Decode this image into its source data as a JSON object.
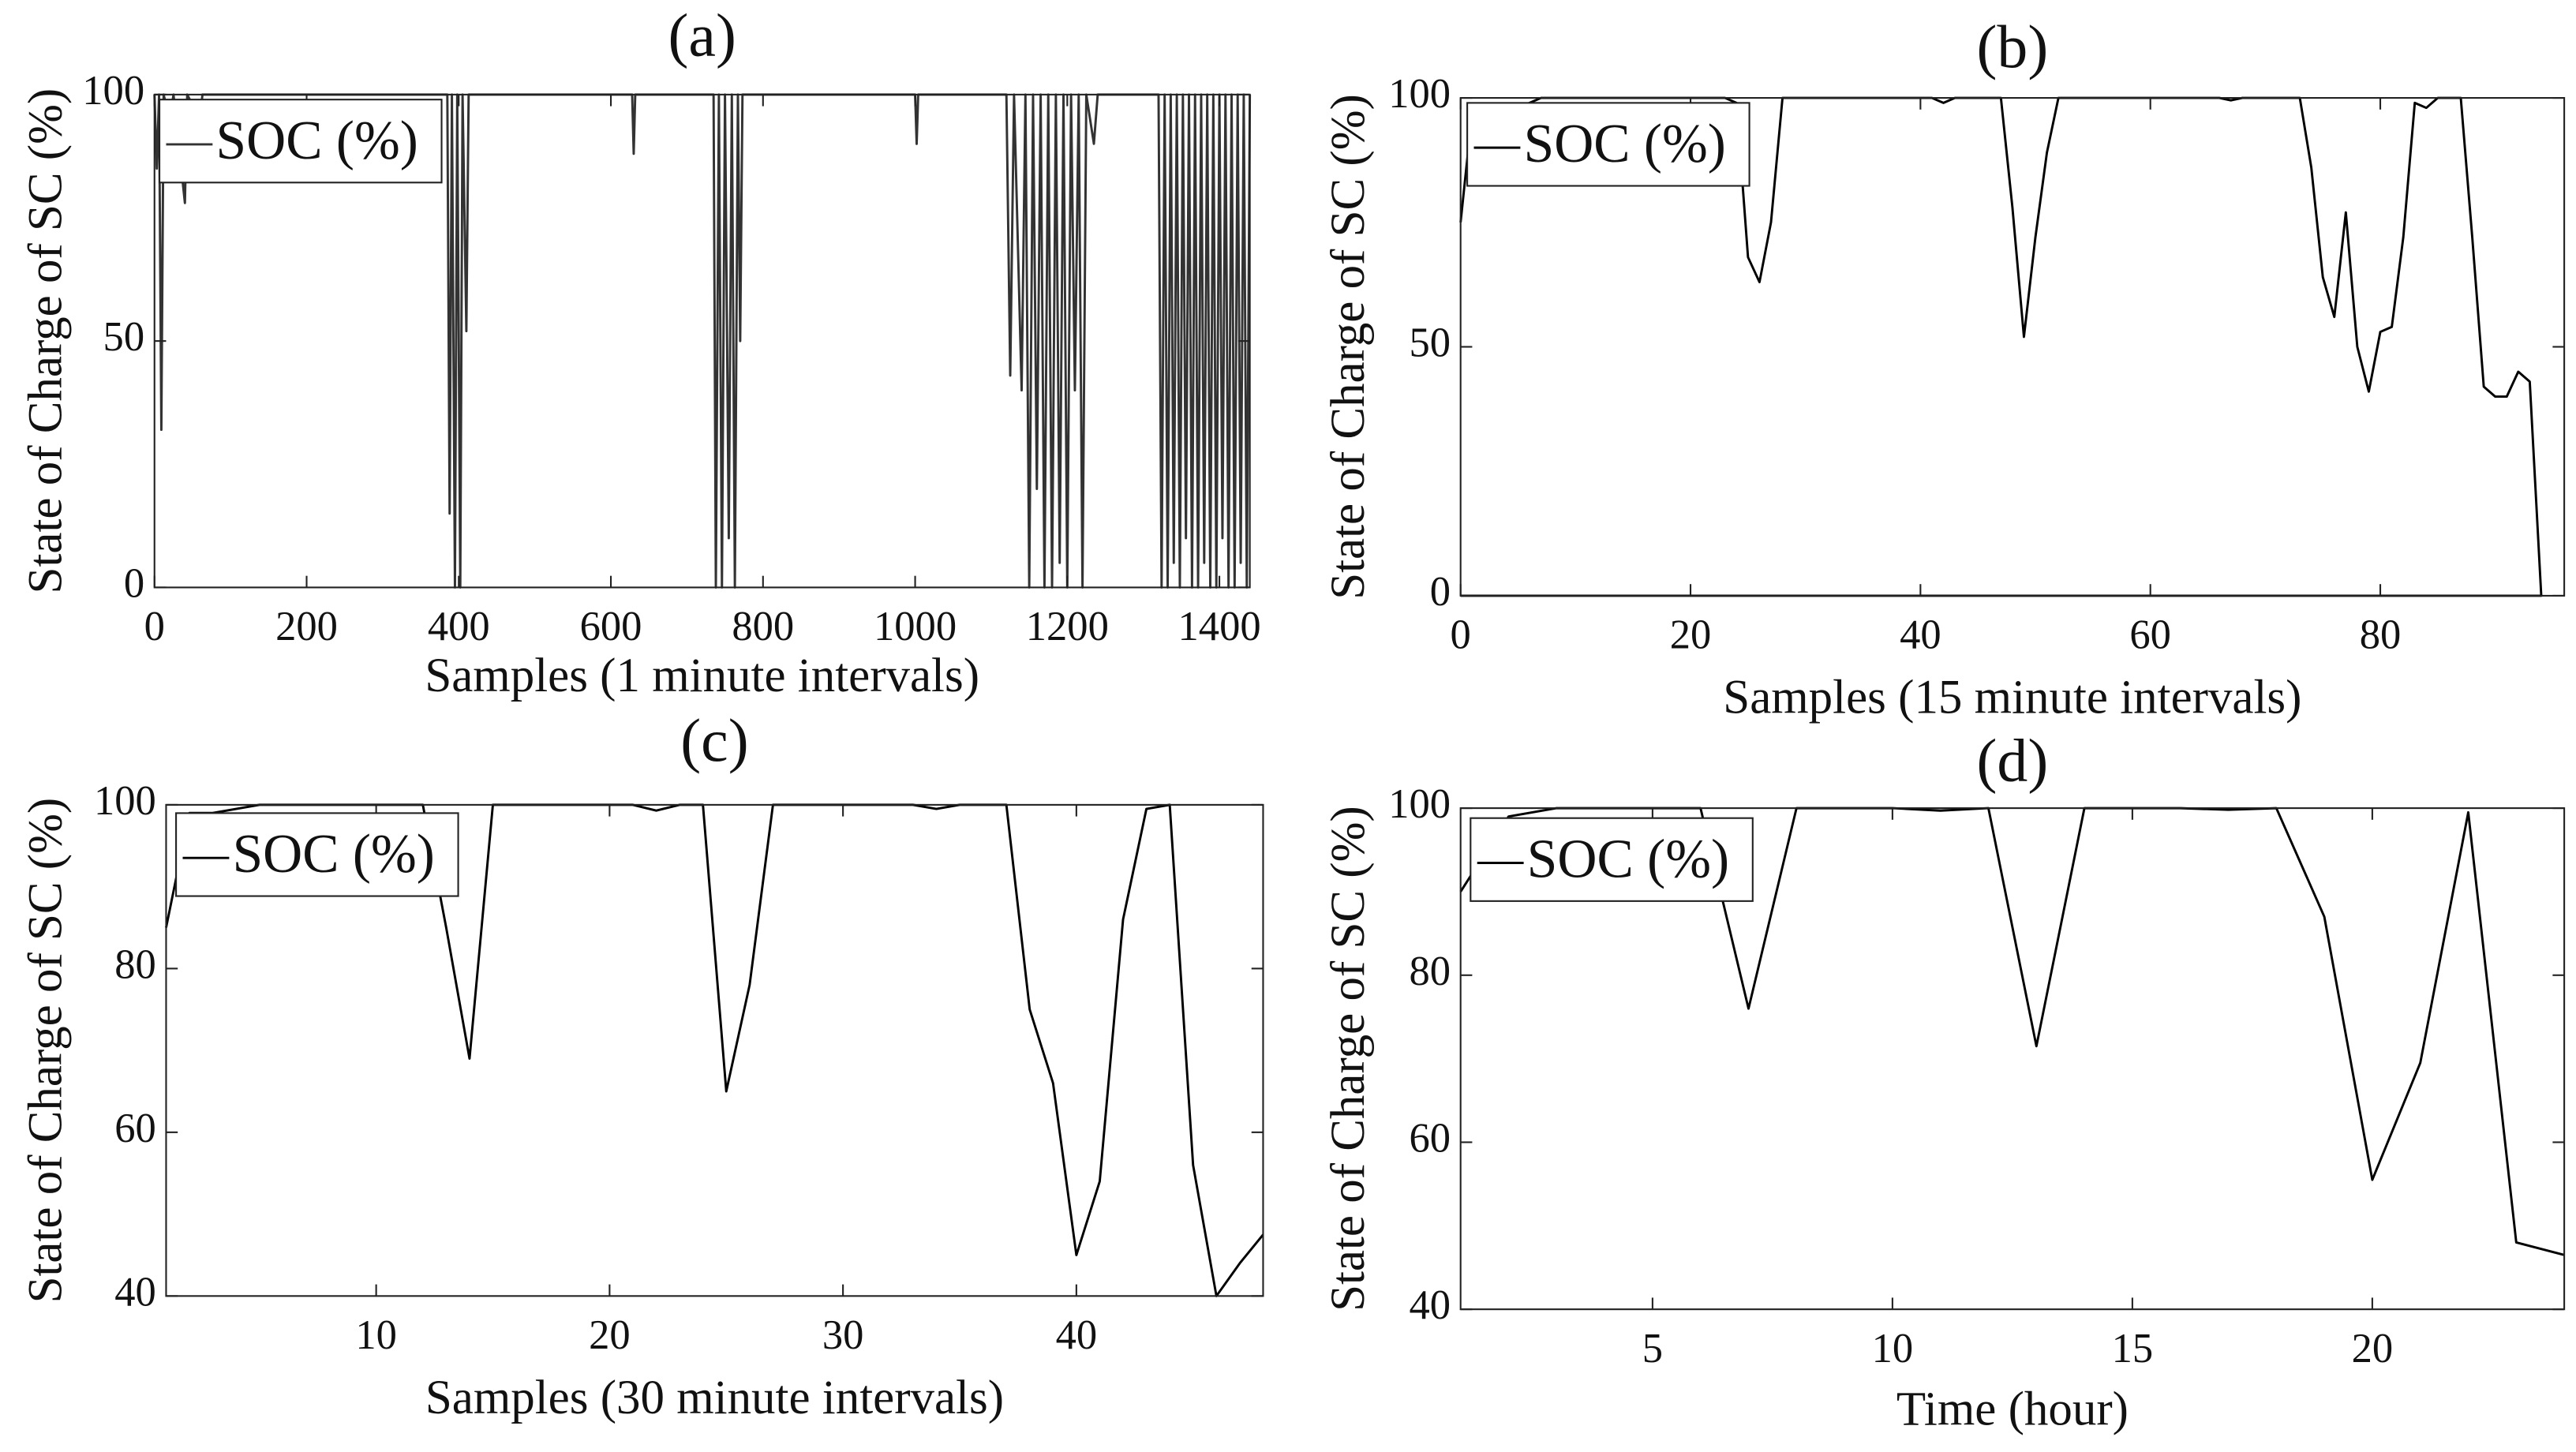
{
  "chart_data": [
    {
      "type": "line",
      "title": "(a)",
      "xlabel": "Samples (1 minute intervals)",
      "ylabel": "State of Charge of SC (%)",
      "x": [
        0,
        3,
        6,
        9,
        12,
        20,
        25,
        40,
        43,
        60,
        63,
        385,
        388,
        391,
        395,
        398,
        402,
        405,
        410,
        413,
        628,
        630,
        632,
        735,
        738,
        742,
        746,
        750,
        755,
        759,
        763,
        767,
        770,
        773,
        1000,
        1002,
        1004,
        1120,
        1125,
        1130,
        1140,
        1145,
        1150,
        1155,
        1160,
        1165,
        1170,
        1175,
        1180,
        1185,
        1190,
        1195,
        1200,
        1205,
        1210,
        1215,
        1220,
        1225,
        1235,
        1240,
        1320,
        1324,
        1328,
        1332,
        1336,
        1340,
        1344,
        1348,
        1352,
        1356,
        1360,
        1364,
        1368,
        1372,
        1376,
        1380,
        1384,
        1388,
        1392,
        1396,
        1400,
        1404,
        1408,
        1412,
        1416,
        1420,
        1424,
        1428,
        1432,
        1436,
        1440
      ],
      "series": [
        {
          "name": "SOC (%)",
          "color": "#333333",
          "values": [
            100,
            85,
            100,
            32,
            100,
            95,
            100,
            78,
            100,
            95,
            100,
            100,
            15,
            100,
            0,
            100,
            0,
            100,
            52,
            100,
            100,
            88,
            100,
            100,
            0,
            100,
            0,
            100,
            10,
            100,
            0,
            100,
            50,
            100,
            100,
            90,
            100,
            100,
            43,
            100,
            40,
            100,
            0,
            100,
            20,
            100,
            0,
            100,
            0,
            100,
            5,
            100,
            0,
            100,
            40,
            100,
            0,
            100,
            90,
            100,
            100,
            0,
            100,
            0,
            100,
            5,
            100,
            0,
            100,
            10,
            100,
            0,
            100,
            0,
            100,
            5,
            100,
            0,
            100,
            0,
            100,
            10,
            100,
            0,
            100,
            0,
            100,
            5,
            100,
            0,
            100
          ]
        }
      ],
      "xlim": [
        0,
        1440
      ],
      "ylim": [
        0,
        100
      ],
      "xticks": [
        0,
        200,
        400,
        600,
        800,
        1000,
        1200,
        1400
      ],
      "yticks": [
        0,
        50,
        100
      ]
    },
    {
      "type": "line",
      "title": "(b)",
      "xlabel": "Samples (15 minute intervals)",
      "ylabel": "State of Charge of SC (%)",
      "x": [
        0,
        1,
        2,
        3,
        4,
        5,
        6,
        7,
        23,
        24,
        25,
        26,
        27,
        28,
        41,
        42,
        43,
        47,
        48,
        49,
        50,
        51,
        52,
        66,
        67,
        68,
        73,
        74,
        75,
        76,
        77,
        78,
        79,
        80,
        81,
        82,
        83,
        84,
        85,
        87,
        88,
        89,
        90,
        91,
        92,
        93,
        94,
        0
      ],
      "series": [
        {
          "name": "SOC (%)",
          "color": "#000000",
          "values": [
            75,
            97,
            97,
            97,
            98,
            98,
            99,
            100,
            100,
            99,
            68,
            63,
            75,
            100,
            100,
            99,
            100,
            100,
            78,
            52,
            72,
            89,
            100,
            100,
            99.5,
            100,
            100,
            86,
            64,
            56,
            77,
            50,
            41,
            53,
            54,
            72,
            99,
            98,
            100,
            100,
            72,
            42,
            40,
            40,
            45,
            43,
            0,
            0
          ]
        }
      ],
      "xlim": [
        0,
        96
      ],
      "ylim": [
        0,
        100
      ],
      "xticks": [
        0,
        20,
        40,
        60,
        80
      ],
      "yticks": [
        0,
        50,
        100
      ]
    },
    {
      "type": "line",
      "title": "(c)",
      "xlabel": "Samples (30 minute intervals)",
      "ylabel": "State of Charge of SC (%)",
      "x": [
        1,
        2,
        3,
        4,
        5,
        6,
        7,
        8,
        9,
        10,
        11,
        12,
        13,
        14,
        15,
        16,
        17,
        18,
        19,
        20,
        21,
        22,
        23,
        24,
        25,
        26,
        27,
        28,
        29,
        30,
        31,
        32,
        33,
        34,
        35,
        36,
        37,
        38,
        39,
        40,
        41,
        42,
        43,
        44,
        45,
        46,
        47,
        48
      ],
      "series": [
        {
          "name": "SOC (%)",
          "color": "#000000",
          "values": [
            85,
            99,
            99,
            99.5,
            100,
            100,
            100,
            100,
            100,
            100,
            100,
            100,
            85,
            69,
            100,
            100,
            100,
            100,
            100,
            100,
            100,
            99.3,
            100,
            100,
            65,
            78,
            100,
            100,
            100,
            100,
            100,
            100,
            100,
            99.5,
            100,
            100,
            100,
            75,
            66,
            45,
            54,
            86,
            99.5,
            100,
            56,
            40,
            44,
            47.5
          ]
        }
      ],
      "xlim": [
        1,
        48
      ],
      "ylim": [
        40,
        100
      ],
      "xticks": [
        10,
        20,
        30,
        40
      ],
      "yticks": [
        40,
        60,
        80,
        100
      ]
    },
    {
      "type": "line",
      "title": "(d)",
      "xlabel": "Time (hour)",
      "ylabel": "State of Charge of SC (%)",
      "x": [
        1,
        2,
        3,
        4,
        5,
        6,
        7,
        8,
        9,
        10,
        11,
        12,
        13,
        14,
        15,
        16,
        17,
        18,
        19,
        20,
        21,
        22,
        23,
        24
      ],
      "series": [
        {
          "name": "SOC (%)",
          "color": "#000000",
          "values": [
            90,
            99,
            100,
            100,
            100,
            100,
            76,
            100,
            100,
            100,
            99.7,
            100,
            71.5,
            100,
            100,
            100,
            99.8,
            100,
            87,
            55.5,
            69.5,
            99.5,
            48,
            46.5
          ]
        }
      ],
      "xlim": [
        1,
        24
      ],
      "ylim": [
        40,
        100
      ],
      "xticks": [
        5,
        10,
        15,
        20
      ],
      "yticks": [
        40,
        60,
        80,
        100
      ]
    }
  ]
}
